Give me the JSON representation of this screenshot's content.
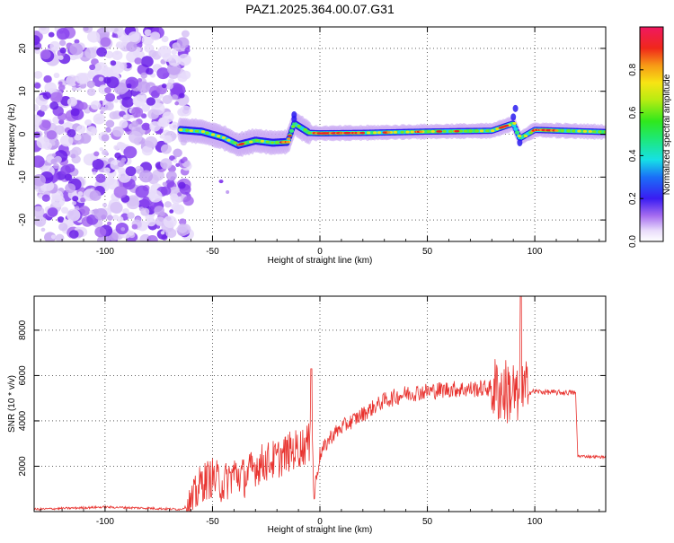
{
  "title": "PAZ1.2025.364.00.07.G31",
  "chart_data": [
    {
      "type": "heatmap",
      "name": "spectrogram",
      "xlabel": "Height of straight line (km)",
      "ylabel": "Frequency (Hz)",
      "xlim": [
        -133,
        133
      ],
      "ylim": [
        -25,
        25
      ],
      "xticks": [
        -100,
        -50,
        0,
        50,
        100
      ],
      "yticks": [
        -20,
        -10,
        0,
        10,
        20
      ],
      "grid": true,
      "colorbar": {
        "label": "Normalized spectral amplitude",
        "range": [
          0,
          1
        ],
        "ticks": [
          "0.0",
          "0.2",
          "0.4",
          "0.6",
          "0.8"
        ],
        "colormap": "rainbow"
      },
      "noise_region_km": [
        -133,
        -65
      ],
      "tone_track": [
        {
          "h": -65,
          "f": 1.0
        },
        {
          "h": -55,
          "f": 0.6
        },
        {
          "h": -45,
          "f": -0.8
        },
        {
          "h": -38,
          "f": -2.5
        },
        {
          "h": -30,
          "f": -1.5
        },
        {
          "h": -22,
          "f": -2.0
        },
        {
          "h": -15,
          "f": -1.8
        },
        {
          "h": -12,
          "f": 2.5
        },
        {
          "h": -5,
          "f": 0.3
        },
        {
          "h": 0,
          "f": 0.2
        },
        {
          "h": 20,
          "f": 0.3
        },
        {
          "h": 50,
          "f": 0.6
        },
        {
          "h": 80,
          "f": 0.8
        },
        {
          "h": 90,
          "f": 2.5
        },
        {
          "h": 93,
          "f": -1.0
        },
        {
          "h": 100,
          "f": 1.0
        },
        {
          "h": 133,
          "f": 0.5
        }
      ]
    },
    {
      "type": "line",
      "name": "snr",
      "xlabel": "Height of straight line (km)",
      "ylabel": "SNR (10 * v/v)",
      "xlim": [
        -133,
        133
      ],
      "ylim": [
        0,
        9500
      ],
      "xticks": [
        -100,
        -50,
        0,
        50,
        100
      ],
      "yticks": [
        2000,
        4000,
        6000,
        8000
      ],
      "grid": true,
      "series": [
        {
          "name": "SNR",
          "color": "#e8332f",
          "x": [
            -133,
            -100,
            -80,
            -65,
            -60,
            -55,
            -50,
            -45,
            -40,
            -35,
            -30,
            -25,
            -20,
            -15,
            -10,
            -5,
            -4,
            -3,
            0,
            5,
            10,
            15,
            20,
            25,
            30,
            40,
            50,
            60,
            70,
            80,
            85,
            90,
            92,
            94,
            100,
            110,
            118,
            119,
            120,
            133
          ],
          "y": [
            100,
            200,
            150,
            100,
            300,
            1300,
            1500,
            1200,
            1700,
            1500,
            2000,
            2200,
            2300,
            2600,
            2800,
            3000,
            6300,
            700,
            2500,
            3300,
            3700,
            4000,
            4300,
            4600,
            4900,
            5200,
            5300,
            5400,
            5400,
            5450,
            5300,
            5300,
            4800,
            5200,
            5300,
            5250,
            5250,
            5200,
            2450,
            2400
          ]
        }
      ]
    }
  ]
}
